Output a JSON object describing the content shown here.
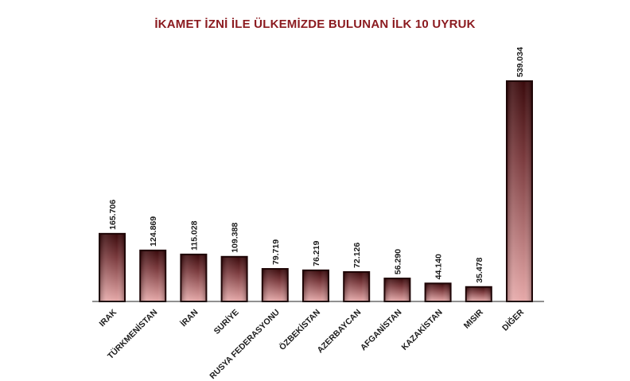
{
  "chart_data": {
    "type": "bar",
    "title": "İKAMET İZNİ İLE ÜLKEMİZDE BULUNAN İLK 10 UYRUK",
    "xlabel": "",
    "ylabel": "",
    "categories": [
      "IRAK",
      "TÜRKMENİSTAN",
      "İRAN",
      "SURİYE",
      "RUSYA FEDERASYONU",
      "ÖZBEKİSTAN",
      "AZERBAYCAN",
      "AFGANİSTAN",
      "KAZAKİSTAN",
      "MISIR",
      "DİĞER"
    ],
    "values": [
      165706,
      124869,
      115028,
      109388,
      79719,
      76219,
      72126,
      56290,
      44140,
      35478,
      539034
    ],
    "value_labels": [
      "165.706",
      "124.869",
      "115.028",
      "109.388",
      "79.719",
      "76.219",
      "72.126",
      "56.290",
      "44.140",
      "35.478",
      "539.034"
    ],
    "ylim": [
      0,
      570000
    ],
    "grid": false,
    "legend": "none",
    "colors": {
      "title": "#8b1a1f",
      "bar_top": "#3a0a0c",
      "bar_bottom": "#e6a9a9",
      "bar_edge": "#1e0506",
      "axis": "#222222"
    }
  }
}
